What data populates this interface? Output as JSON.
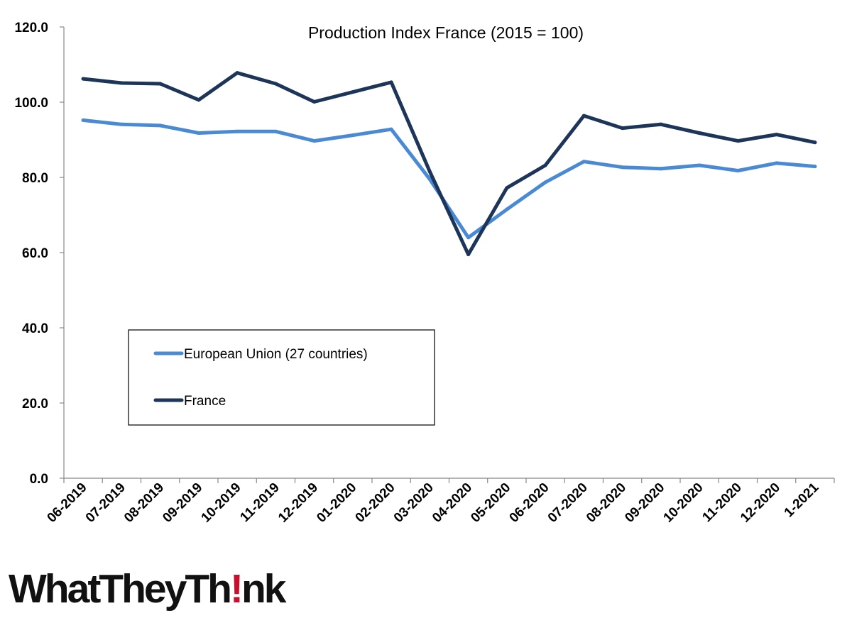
{
  "chart_data": {
    "type": "line",
    "title": "Production Index France (2015 = 100)",
    "xlabel": "",
    "ylabel": "",
    "categories": [
      "06-2019",
      "07-2019",
      "08-2019",
      "09-2019",
      "10-2019",
      "11-2019",
      "12-2019",
      "01-2020",
      "02-2020",
      "03-2020",
      "04-2020",
      "05-2020",
      "06-2020",
      "07-2020",
      "08-2020",
      "09-2020",
      "10-2020",
      "11-2020",
      "12-2020",
      "1-2021"
    ],
    "ylim": [
      0,
      120
    ],
    "yticks": [
      "0.0",
      "20.0",
      "40.0",
      "60.0",
      "80.0",
      "100.0",
      "120.0"
    ],
    "grid": false,
    "legend_position": "lower-left",
    "series": [
      {
        "name": "European Union (27 countries)",
        "color": "#4a8ad4",
        "values": [
          95.2,
          94.1,
          93.8,
          91.8,
          92.2,
          92.2,
          89.7,
          91.2,
          92.8,
          79.5,
          64.0,
          71.5,
          78.7,
          84.2,
          82.7,
          82.3,
          83.2,
          81.8,
          83.8,
          82.9
        ]
      },
      {
        "name": "France",
        "color": "#1c3558",
        "values": [
          106.2,
          105.1,
          104.9,
          100.6,
          107.8,
          104.9,
          100.1,
          102.7,
          105.3,
          81.5,
          59.5,
          77.2,
          83.2,
          96.4,
          93.1,
          94.1,
          91.8,
          89.7,
          91.4,
          89.3
        ]
      }
    ]
  },
  "logo": {
    "text_before": "WhatTheyTh",
    "text_excl": "!",
    "text_after": "nk"
  }
}
